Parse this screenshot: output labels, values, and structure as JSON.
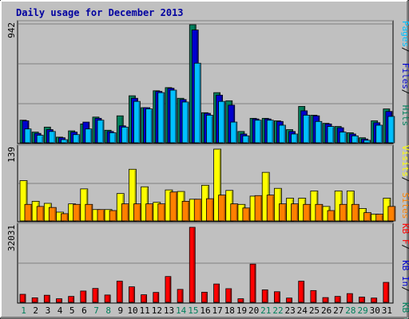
{
  "chart_data": [
    {
      "type": "bar",
      "title": "Daily usage for December 2013",
      "categories": [
        "1",
        "2",
        "3",
        "4",
        "5",
        "6",
        "7",
        "8",
        "9",
        "10",
        "11",
        "12",
        "13",
        "14",
        "15",
        "16",
        "17",
        "18",
        "19",
        "20",
        "21",
        "22",
        "23",
        "24",
        "25",
        "26",
        "27",
        "28",
        "29",
        "30",
        "31"
      ],
      "weekend_days": [
        "1",
        "7",
        "8",
        "14",
        "15",
        "21",
        "22",
        "28",
        "29"
      ],
      "ymax_label": "942",
      "ylim": [
        0,
        942
      ],
      "right_labels": [
        "Pages",
        "Files",
        "Hits"
      ],
      "series": [
        {
          "name": "Hits",
          "color": "#00805c",
          "values": [
            180,
            85,
            125,
            45,
            95,
            150,
            205,
            100,
            215,
            375,
            280,
            415,
            440,
            355,
            942,
            240,
            400,
            335,
            90,
            195,
            195,
            175,
            105,
            290,
            220,
            155,
            130,
            80,
            40,
            175,
            270
          ]
        },
        {
          "name": "Files",
          "color": "#0000d0",
          "values": [
            175,
            75,
            105,
            40,
            85,
            165,
            195,
            90,
            135,
            355,
            280,
            410,
            435,
            345,
            900,
            235,
            380,
            300,
            70,
            190,
            190,
            170,
            90,
            255,
            215,
            150,
            120,
            70,
            30,
            160,
            250
          ]
        },
        {
          "name": "Pages",
          "color": "#00c0ff",
          "values": [
            110,
            60,
            90,
            25,
            65,
            110,
            180,
            80,
            125,
            330,
            270,
            400,
            420,
            325,
            635,
            220,
            330,
            165,
            55,
            180,
            180,
            140,
            70,
            220,
            170,
            130,
            85,
            55,
            20,
            140,
            210
          ]
        }
      ]
    },
    {
      "type": "bar",
      "categories": [
        "1",
        "2",
        "3",
        "4",
        "5",
        "6",
        "7",
        "8",
        "9",
        "10",
        "11",
        "12",
        "13",
        "14",
        "15",
        "16",
        "17",
        "18",
        "19",
        "20",
        "21",
        "22",
        "23",
        "24",
        "25",
        "26",
        "27",
        "28",
        "29",
        "30",
        "31"
      ],
      "ymax_label": "139",
      "ylim": [
        0,
        139
      ],
      "right_labels": [
        "Visits",
        "Sites"
      ],
      "series": [
        {
          "name": "Visits",
          "color": "#ffff00",
          "values": [
            78,
            38,
            34,
            17,
            33,
            62,
            22,
            22,
            53,
            100,
            66,
            36,
            60,
            57,
            42,
            69,
            139,
            59,
            32,
            48,
            94,
            63,
            44,
            44,
            58,
            28,
            58,
            58,
            24,
            13,
            44
          ]
        },
        {
          "name": "Sites",
          "color": "#ff8000",
          "values": [
            32,
            28,
            26,
            14,
            32,
            32,
            22,
            20,
            33,
            33,
            33,
            33,
            56,
            38,
            42,
            43,
            50,
            33,
            25,
            49,
            50,
            33,
            33,
            32,
            32,
            20,
            32,
            32,
            16,
            13,
            28
          ]
        }
      ]
    },
    {
      "type": "bar",
      "categories": [
        "1",
        "2",
        "3",
        "4",
        "5",
        "6",
        "7",
        "8",
        "9",
        "10",
        "11",
        "12",
        "13",
        "14",
        "15",
        "16",
        "17",
        "18",
        "19",
        "20",
        "21",
        "22",
        "23",
        "24",
        "25",
        "26",
        "27",
        "28",
        "29",
        "30",
        "31"
      ],
      "ymax_label": "32031",
      "ylim": [
        0,
        32031
      ],
      "right_labels": [
        "KB F",
        "KB In",
        "KB Out"
      ],
      "series": [
        {
          "name": "KB F",
          "color": "#ff0000",
          "values": [
            3400,
            1900,
            3000,
            1500,
            2500,
            4800,
            5900,
            3100,
            9000,
            6600,
            3200,
            4200,
            11000,
            5500,
            32031,
            4300,
            7800,
            5800,
            1500,
            16300,
            5300,
            4500,
            1800,
            9000,
            5000,
            2000,
            2500,
            3700,
            2200,
            1800,
            8500
          ]
        }
      ]
    }
  ]
}
